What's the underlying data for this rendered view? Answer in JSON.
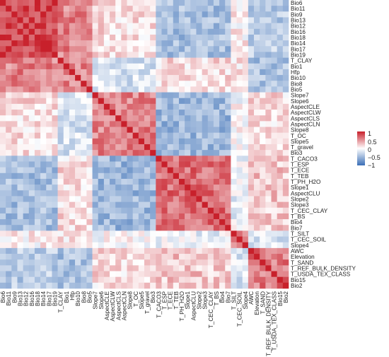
{
  "chart_data": {
    "type": "heatmap",
    "title": "",
    "rows": [
      "Bio6",
      "Bio11",
      "Bio9",
      "Bio13",
      "Bio12",
      "Bio16",
      "Bio18",
      "Bio14",
      "Bio17",
      "Bio19",
      "T_CLAY",
      "Bio1",
      "Hfp",
      "Bio10",
      "Bio8",
      "Bio5",
      "Slope7",
      "Slope6",
      "AspectCLE",
      "AspectCLW",
      "AspectCLS",
      "AspectCLN",
      "Slope8",
      "T_OC",
      "Slope5",
      "T_gravel",
      "Bio3",
      "T_CACO3",
      "T_ESP",
      "T_ECE",
      "T_TEB",
      "T_PH_H2O",
      "Slope1",
      "AspectCLU",
      "Slope2",
      "Slope3",
      "T_CEC_CLAY",
      "T_BS",
      "Bio4",
      "Bio7",
      "T_SILT",
      "T_CEC_SOIL",
      "Slope4",
      "AWC",
      "Elevation",
      "T_SAND",
      "T_REF_BULK_DENSITY",
      "T_USDA_TEX_CLASS",
      "Bio15",
      "Bio2"
    ],
    "columns": [
      "Bio6",
      "Bio11",
      "Bio9",
      "Bio13",
      "Bio12",
      "Bio16",
      "Bio18",
      "Bio14",
      "Bio17",
      "Bio19",
      "T_CLAY",
      "Bio1",
      "Hfp",
      "Bio10",
      "Bio8",
      "Bio5",
      "Slope7",
      "Slope6",
      "AspectCLE",
      "AspectCLW",
      "AspectCLS",
      "AspectCLN",
      "Slope8",
      "T_OC",
      "Slope5",
      "T_gravel",
      "Bio3",
      "T_CACO3",
      "T_ESP",
      "T_ECE",
      "T_TEB",
      "T_PH_H2O",
      "Slope1",
      "AspectCLU",
      "Slope2",
      "Slope3",
      "T_CEC_CLAY",
      "T_BS",
      "Bio4",
      "Bio7",
      "T_SILT",
      "T_CEC_SOIL",
      "Slope4",
      "AWC",
      "Elevation",
      "T_SAND",
      "T_REF_BULK_DENSITY",
      "T_USDA_TEX_CLASS",
      "Bio15",
      "Bio2"
    ],
    "groups": [
      {
        "start": 0,
        "end": 9,
        "within": 0.85
      },
      {
        "start": 10,
        "end": 15,
        "within": 0.55
      },
      {
        "start": 16,
        "end": 26,
        "within": 0.55
      },
      {
        "start": 27,
        "end": 39,
        "within": 0.65
      },
      {
        "start": 40,
        "end": 42,
        "within": 0.5
      },
      {
        "start": 43,
        "end": 49,
        "within": 0.6
      }
    ],
    "group_correlations": [
      [
        1.0,
        0.55,
        0.15,
        -0.45,
        0.05,
        -0.35
      ],
      [
        0.55,
        1.0,
        -0.2,
        0.15,
        0.1,
        -0.45
      ],
      [
        0.15,
        -0.2,
        1.0,
        -0.5,
        0.0,
        0.15
      ],
      [
        -0.45,
        0.15,
        -0.5,
        1.0,
        -0.1,
        0.25
      ],
      [
        0.05,
        0.1,
        0.0,
        -0.1,
        1.0,
        -0.2
      ],
      [
        -0.35,
        -0.45,
        0.15,
        0.25,
        -0.2,
        1.0
      ]
    ],
    "diagonal": 1,
    "color_scale": {
      "low": "#3b6fb6",
      "mid": "#ffffff",
      "high": "#c8202b",
      "min": -1,
      "max": 1
    },
    "legend": {
      "ticks": [
        "1",
        "0.5",
        "0",
        "−0.5",
        "−1"
      ],
      "tick_values": [
        1,
        0.5,
        0,
        -0.5,
        -1
      ],
      "position": "right"
    }
  }
}
